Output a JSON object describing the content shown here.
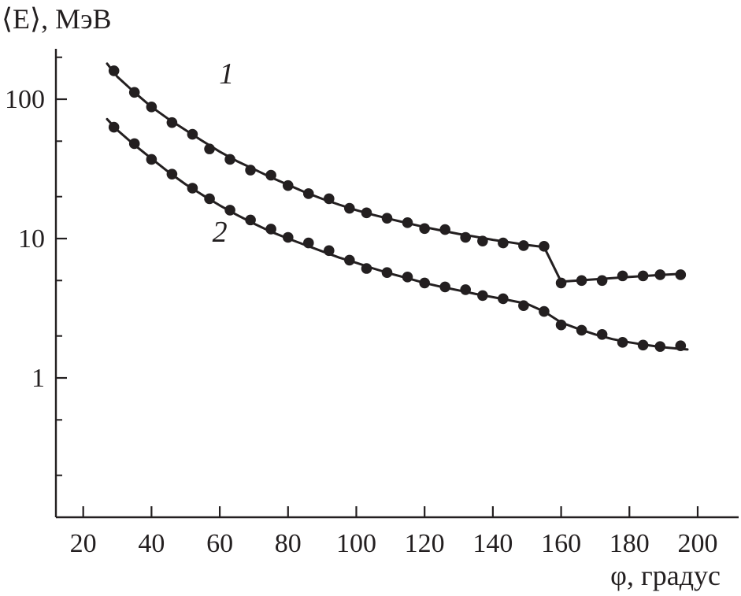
{
  "chart_data": {
    "type": "line",
    "xlabel": "φ, градус",
    "ylabel": "⟨E⟩, МэВ",
    "x_range": [
      12,
      212
    ],
    "y_range": [
      0.1,
      230
    ],
    "y_scale": "log",
    "x_ticks": [
      {
        "value": 20,
        "label": "20"
      },
      {
        "value": 40,
        "label": "40"
      },
      {
        "value": 60,
        "label": "60"
      },
      {
        "value": 80,
        "label": "80"
      },
      {
        "value": 100,
        "label": "100"
      },
      {
        "value": 120,
        "label": "120"
      },
      {
        "value": 140,
        "label": "140"
      },
      {
        "value": 160,
        "label": "160"
      },
      {
        "value": 180,
        "label": "180"
      },
      {
        "value": 200,
        "label": "200"
      }
    ],
    "y_major_ticks": [
      {
        "value": 1,
        "label": "1"
      },
      {
        "value": 10,
        "label": "10"
      },
      {
        "value": 100,
        "label": "100"
      }
    ],
    "y_minor_ticks": [
      0.2,
      0.5,
      2,
      5,
      20,
      50,
      200
    ],
    "grid": false,
    "colors": {
      "ink": "#231f20",
      "background": "#ffffff"
    },
    "series": [
      {
        "label": "1",
        "label_at": {
          "x": 62,
          "y": 130
        },
        "points": {
          "x": [
            29,
            35,
            40,
            46,
            52,
            57,
            63,
            69,
            75,
            80,
            86,
            92,
            98,
            103,
            109,
            115,
            120,
            126,
            132,
            137,
            143,
            149,
            155,
            160,
            166,
            172,
            178,
            184,
            189,
            195
          ],
          "y": [
            160,
            112,
            88,
            68,
            56,
            44,
            37,
            31,
            28.5,
            24,
            21,
            19.3,
            16.5,
            15.3,
            14,
            13,
            11.8,
            11.6,
            10.2,
            9.6,
            9.3,
            8.9,
            8.8,
            4.8,
            5.0,
            5.0,
            5.4,
            5.4,
            5.5,
            5.5
          ]
        },
        "curve": {
          "x": [
            27,
            30,
            35,
            40,
            45,
            50,
            55,
            60,
            65,
            70,
            75,
            80,
            85,
            90,
            95,
            100,
            105,
            110,
            115,
            120,
            125,
            130,
            135,
            140,
            145,
            150,
            155,
            160,
            165,
            170,
            175,
            180,
            185,
            190,
            196
          ],
          "y": [
            180,
            145,
            112,
            88,
            72,
            60,
            50,
            42,
            36,
            31.5,
            27.5,
            24.3,
            21.5,
            19.3,
            17.5,
            16,
            14.8,
            13.8,
            12.9,
            12.1,
            11.4,
            10.8,
            10.3,
            9.8,
            9.4,
            9.0,
            8.7,
            4.9,
            5.0,
            5.1,
            5.2,
            5.3,
            5.4,
            5.5,
            5.6
          ]
        }
      },
      {
        "label": "2",
        "label_at": {
          "x": 60,
          "y": 9.5
        },
        "points": {
          "x": [
            29,
            35,
            40,
            46,
            52,
            57,
            63,
            69,
            75,
            80,
            86,
            92,
            98,
            103,
            109,
            115,
            120,
            126,
            132,
            137,
            143,
            149,
            155,
            160,
            166,
            172,
            178,
            184,
            189,
            195
          ],
          "y": [
            63,
            48,
            37,
            29,
            23,
            19.3,
            16,
            13.6,
            11.7,
            10.2,
            9.3,
            8.2,
            7.0,
            6.1,
            5.7,
            5.3,
            4.8,
            4.5,
            4.3,
            3.9,
            3.7,
            3.3,
            3.0,
            2.4,
            2.2,
            2.05,
            1.8,
            1.72,
            1.68,
            1.7
          ]
        },
        "curve": {
          "x": [
            27,
            30,
            35,
            40,
            45,
            50,
            55,
            60,
            65,
            70,
            75,
            80,
            85,
            90,
            95,
            100,
            105,
            110,
            115,
            120,
            125,
            130,
            135,
            140,
            145,
            150,
            155,
            160,
            165,
            170,
            175,
            180,
            185,
            190,
            197
          ],
          "y": [
            72,
            60,
            47,
            37.5,
            30,
            24.5,
            20.5,
            17.3,
            14.8,
            12.8,
            11.2,
            10.0,
            9.0,
            8.1,
            7.3,
            6.7,
            6.1,
            5.6,
            5.2,
            4.8,
            4.5,
            4.25,
            4.0,
            3.8,
            3.6,
            3.4,
            3.0,
            2.5,
            2.25,
            2.05,
            1.9,
            1.8,
            1.72,
            1.66,
            1.6
          ]
        }
      }
    ]
  }
}
